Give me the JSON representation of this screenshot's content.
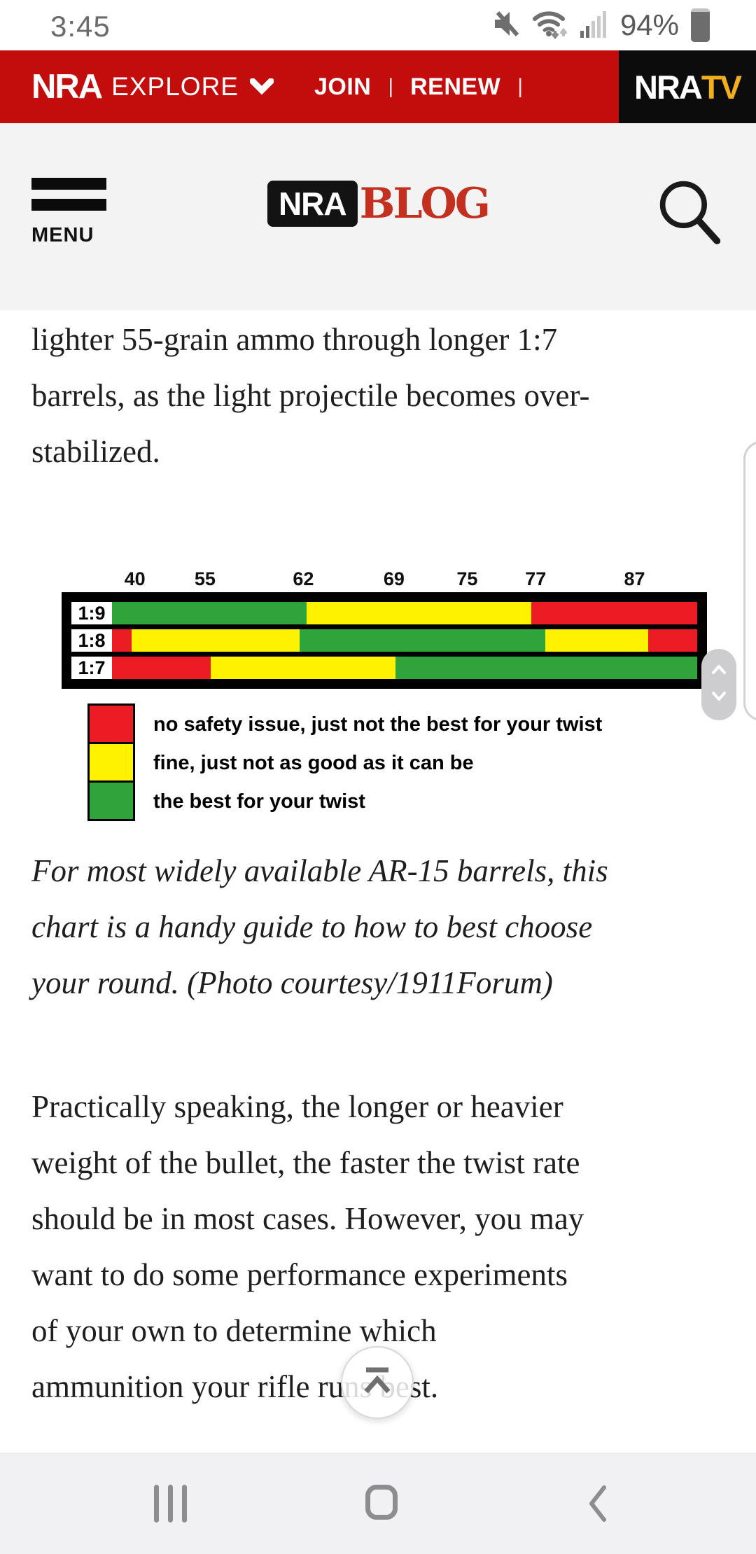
{
  "colors": {
    "nav_red": "#C30D0D",
    "nratv_gold": "#F2B01C",
    "logo_blog_red": "#C3301F",
    "chart": {
      "red": "#EC1C24",
      "yellow": "#FFF200",
      "green": "#2EA43B"
    }
  },
  "status_bar": {
    "time": "3:45",
    "battery_percent": "94%"
  },
  "top_nav": {
    "brand": "NRA",
    "explore_label": "EXPLORE",
    "join_label": "JOIN",
    "renew_label": "RENEW",
    "separator": "|",
    "nratv_nra": "NRA",
    "nratv_tv": "TV"
  },
  "site_header": {
    "menu_label": "MENU",
    "logo_nra": "NRA",
    "logo_blog": "BLOG"
  },
  "article": {
    "paragraph1_lines": [
      "lighter 55-grain ammo through longer 1:7",
      "barrels, as the light projectile becomes over-",
      "stabilized."
    ],
    "caption_lines": [
      "For most widely available AR-15 barrels, this",
      "chart is a handy guide to how to best choose",
      "your round. (Photo courtesy/1911Forum)"
    ],
    "paragraph2_lines": [
      "Practically speaking, the longer or heavier",
      "weight of the bullet, the faster the twist rate",
      "should be in most cases. However, you may",
      "want to do some performance experiments",
      "of your own to determine which",
      "ammunition your rifle runs best."
    ]
  },
  "chart_data": {
    "type": "bar",
    "orientation": "horizontal-stacked",
    "title": "",
    "x_ticks": [
      {
        "label": "40",
        "pos_pct": 3.9
      },
      {
        "label": "55",
        "pos_pct": 15.9
      },
      {
        "label": "62",
        "pos_pct": 32.7
      },
      {
        "label": "69",
        "pos_pct": 48.2
      },
      {
        "label": "75",
        "pos_pct": 60.7
      },
      {
        "label": "77",
        "pos_pct": 72.4
      },
      {
        "label": "87",
        "pos_pct": 89.3
      }
    ],
    "rows": [
      {
        "label": "1:9",
        "segments": [
          {
            "color": "green",
            "pct": 33.2
          },
          {
            "color": "yellow",
            "pct": 38.5
          },
          {
            "color": "red",
            "pct": 28.3
          }
        ]
      },
      {
        "label": "1:8",
        "segments": [
          {
            "color": "red",
            "pct": 3.3
          },
          {
            "color": "yellow",
            "pct": 28.8
          },
          {
            "color": "green",
            "pct": 42.0
          },
          {
            "color": "yellow",
            "pct": 17.5
          },
          {
            "color": "red",
            "pct": 8.4
          }
        ]
      },
      {
        "label": "1:7",
        "segments": [
          {
            "color": "red",
            "pct": 16.9
          },
          {
            "color": "yellow",
            "pct": 31.6
          },
          {
            "color": "green",
            "pct": 51.5
          }
        ]
      }
    ],
    "legend": [
      {
        "color": "red",
        "label": "no safety issue, just not the best for your twist"
      },
      {
        "color": "yellow",
        "label": "fine, just not as good as it can be"
      },
      {
        "color": "green",
        "label": "the best for your twist"
      }
    ]
  }
}
